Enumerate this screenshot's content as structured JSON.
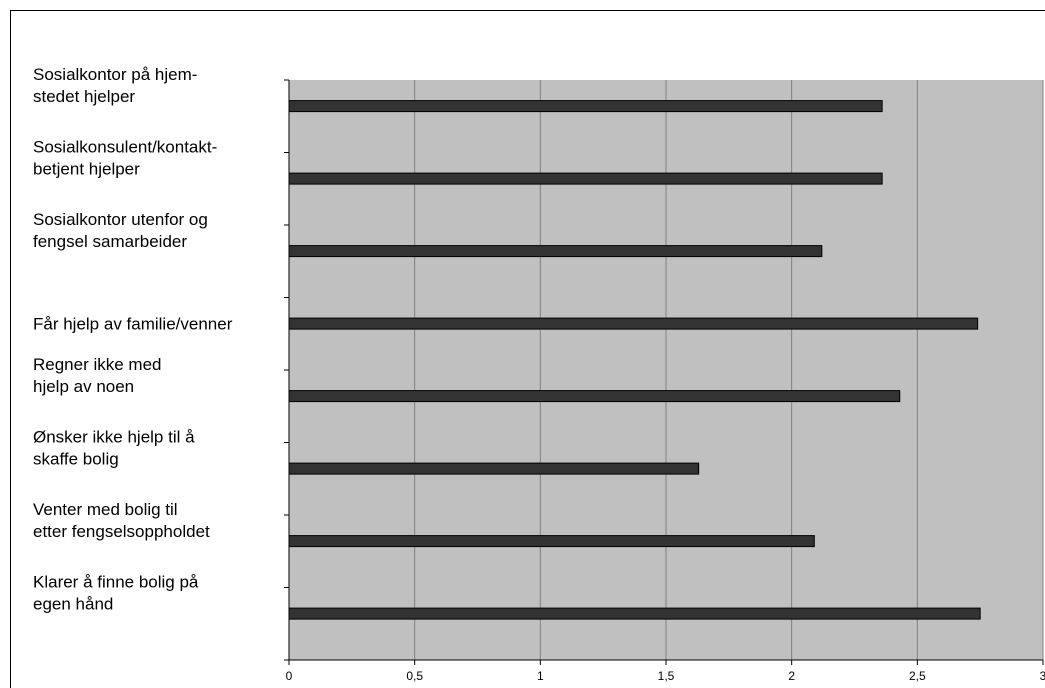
{
  "chart_data": {
    "type": "bar",
    "orientation": "horizontal",
    "categories": [
      [
        "Sosialkontor på hjem-",
        "stedet hjelper"
      ],
      [
        "Sosialkonsulent/kontakt-",
        "betjent hjelper"
      ],
      [
        "Sosialkontor utenfor og",
        "fengsel samarbeider"
      ],
      [
        "Får hjelp av familie/venner"
      ],
      [
        "Regner ikke med",
        "hjelp av noen"
      ],
      [
        "Ønsker ikke hjelp til å",
        "skaffe bolig"
      ],
      [
        "Venter med bolig til",
        "etter fengselsoppholdet"
      ],
      [
        "Klarer å finne bolig på",
        "egen hånd"
      ]
    ],
    "values": [
      2.36,
      2.36,
      2.12,
      2.74,
      2.43,
      1.63,
      2.09,
      2.75
    ],
    "xlim": [
      0,
      3
    ],
    "x_ticks": [
      "0",
      "0,5",
      "1",
      "1,5",
      "2",
      "2,5",
      "3"
    ],
    "grid": "vertical",
    "colors": {
      "plot_background": "#c0c0c0",
      "bar_fill": "#333333",
      "gridline": "#808080",
      "axis": "#000000"
    }
  }
}
